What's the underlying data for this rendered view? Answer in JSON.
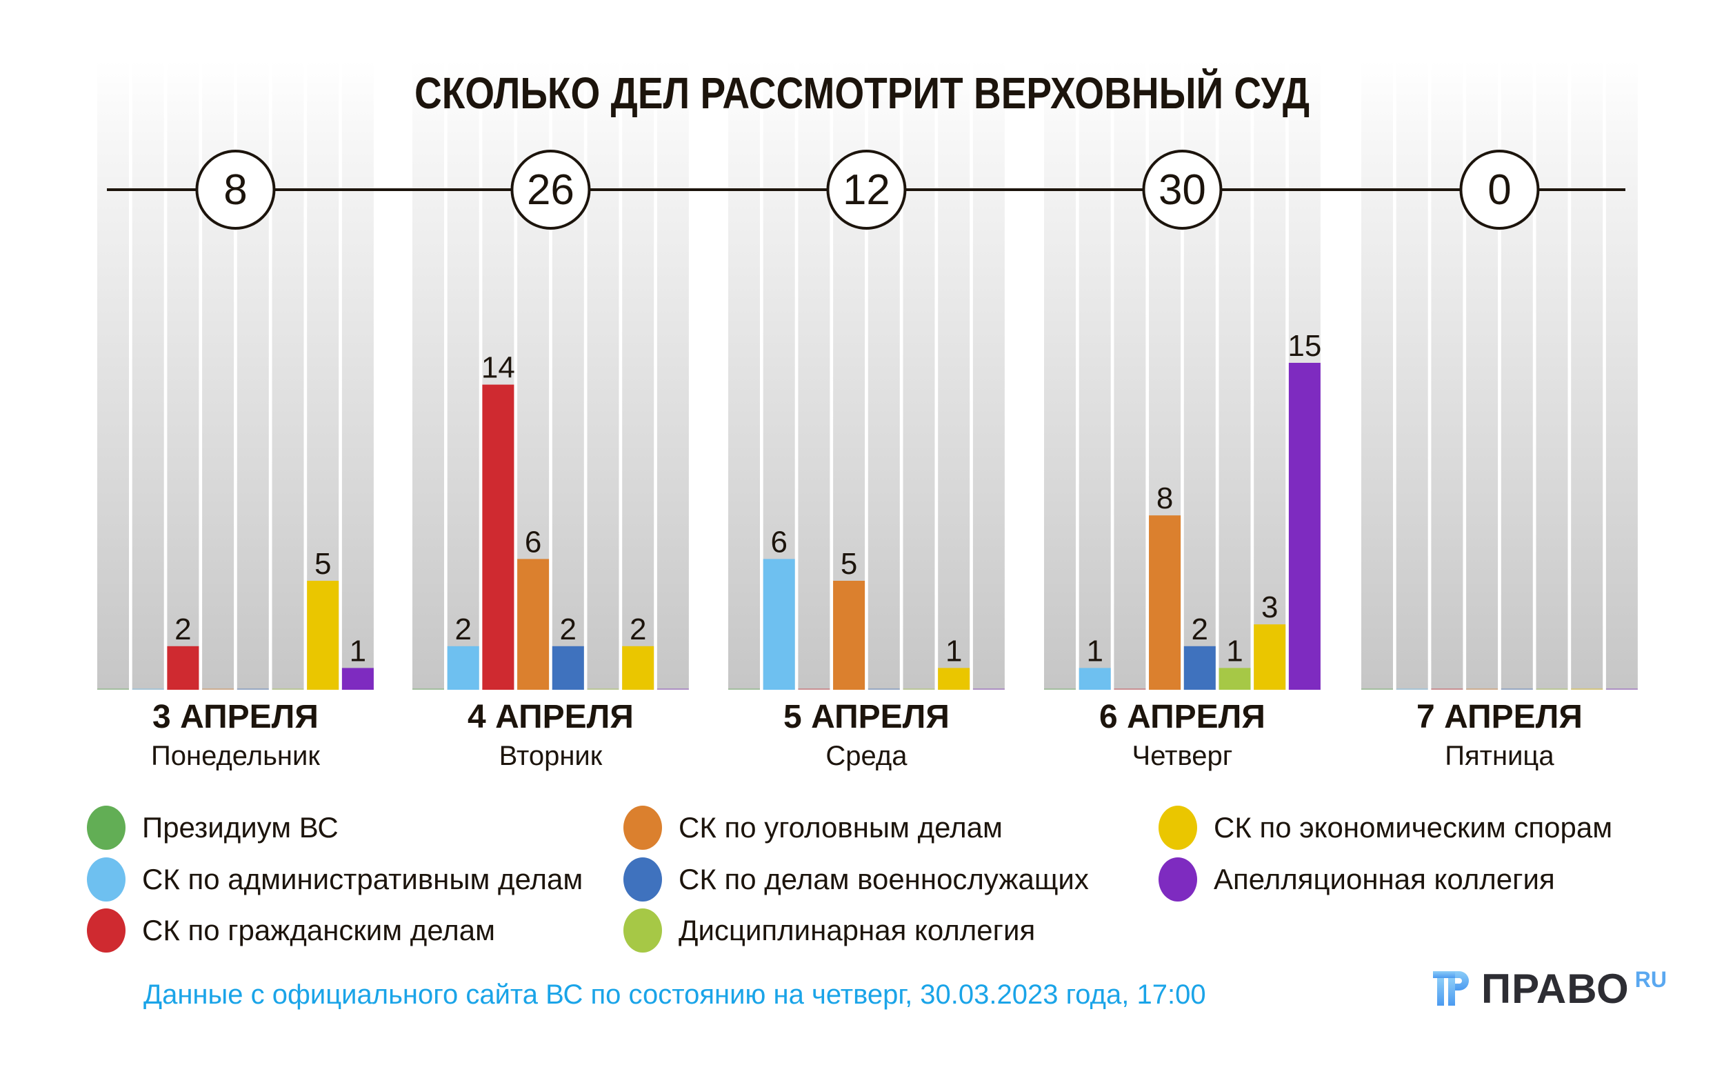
{
  "chart_data": {
    "type": "bar",
    "title": "СКОЛЬКО ДЕЛ РАССМОТРИТ ВЕРХОВНЫЙ СУД",
    "categories": [
      {
        "date": "3 АПРЕЛЯ",
        "weekday": "Понедельник",
        "total": "8"
      },
      {
        "date": "4 АПРЕЛЯ",
        "weekday": "Вторник",
        "total": "26"
      },
      {
        "date": "5 АПРЕЛЯ",
        "weekday": "Среда",
        "total": "12"
      },
      {
        "date": "6 АПРЕЛЯ",
        "weekday": "Четверг",
        "total": "30"
      },
      {
        "date": "7 АПРЕЛЯ",
        "weekday": "Пятница",
        "total": "0"
      }
    ],
    "series": [
      {
        "name": "Президиум ВС",
        "color": "#62ae55",
        "values": [
          0,
          0,
          0,
          0,
          0
        ]
      },
      {
        "name": "СК по административным делам",
        "color": "#6ec0f0",
        "values": [
          0,
          2,
          6,
          1,
          0
        ]
      },
      {
        "name": "СК по гражданским делам",
        "color": "#cf2a30",
        "values": [
          2,
          14,
          0,
          0,
          0
        ]
      },
      {
        "name": "СК по уголовным делам",
        "color": "#db802e",
        "values": [
          0,
          6,
          5,
          8,
          0
        ]
      },
      {
        "name": "СК по делам военнослужащих",
        "color": "#3f72be",
        "values": [
          0,
          2,
          0,
          2,
          0
        ]
      },
      {
        "name": "Дисциплинарная коллегия",
        "color": "#a6c846",
        "values": [
          0,
          0,
          0,
          1,
          0
        ]
      },
      {
        "name": "СК по экономическим спорам",
        "color": "#eac600",
        "values": [
          5,
          2,
          1,
          3,
          0
        ]
      },
      {
        "name": "Апелляционная коллегия",
        "color": "#7e2bc0",
        "values": [
          1,
          0,
          0,
          15,
          0
        ]
      }
    ],
    "xlabel": "",
    "ylabel": "",
    "ylim": [
      0,
      15
    ],
    "grid": false,
    "legend": "bottom",
    "data_labels": "shown for non-zero values"
  },
  "footer": {
    "source": "Данные с официального сайта ВС по состоянию на четверг, 30.03.2023 года, 17:00"
  },
  "logo": {
    "name": "ПРАВО",
    "suffix": "RU"
  },
  "colors": {
    "text": "#1c140c",
    "footer": "#1aa4e8",
    "column_top": "#f6f6f6",
    "column_bottom": "#c8c8c8"
  }
}
